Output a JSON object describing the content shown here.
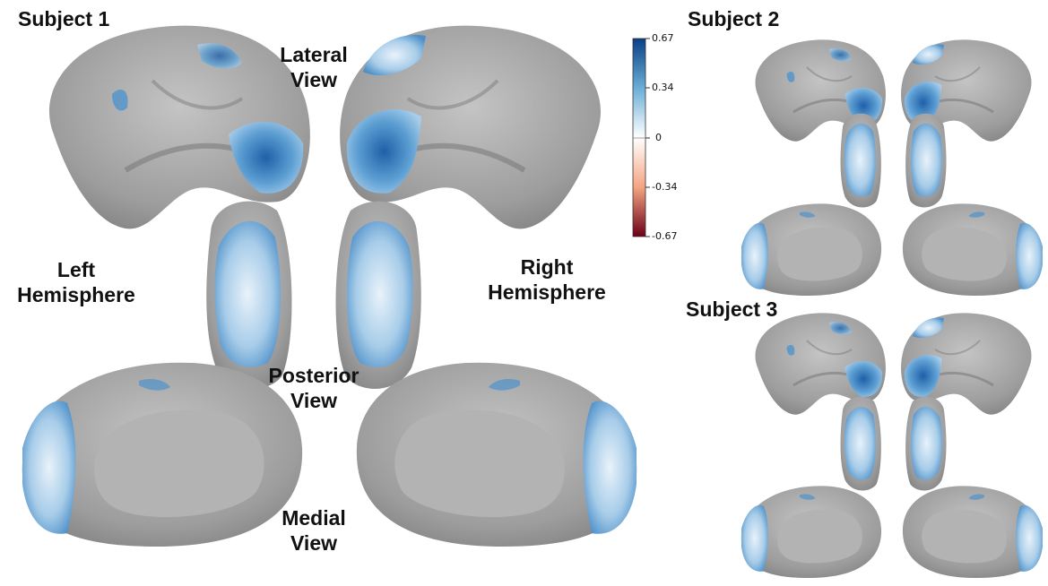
{
  "subjects": [
    {
      "label": "Subject 1"
    },
    {
      "label": "Subject 2"
    },
    {
      "label": "Subject 3"
    }
  ],
  "views": {
    "lateral": [
      "Lateral",
      "View"
    ],
    "posterior": [
      "Posterior",
      "View"
    ],
    "medial": [
      "Medial",
      "View"
    ]
  },
  "hemispheres": {
    "left": [
      "Left",
      "Hemisphere"
    ],
    "right": [
      "Right",
      "Hemisphere"
    ]
  },
  "colorbar": {
    "ticks": [
      "0.67",
      "0.34",
      "0",
      "-0.34",
      "-0.67"
    ],
    "colors": {
      "high": "#0b3f86",
      "mid_high": "#6aaed6",
      "zero": "#ffffff",
      "mid_low": "#f4a582",
      "low": "#6b0017"
    }
  },
  "colors": {
    "brain": "#a9a9a9",
    "brain_dark": "#8d8d8d",
    "medial_wall": "#b3b3b3",
    "activation": "#4f93cc"
  }
}
